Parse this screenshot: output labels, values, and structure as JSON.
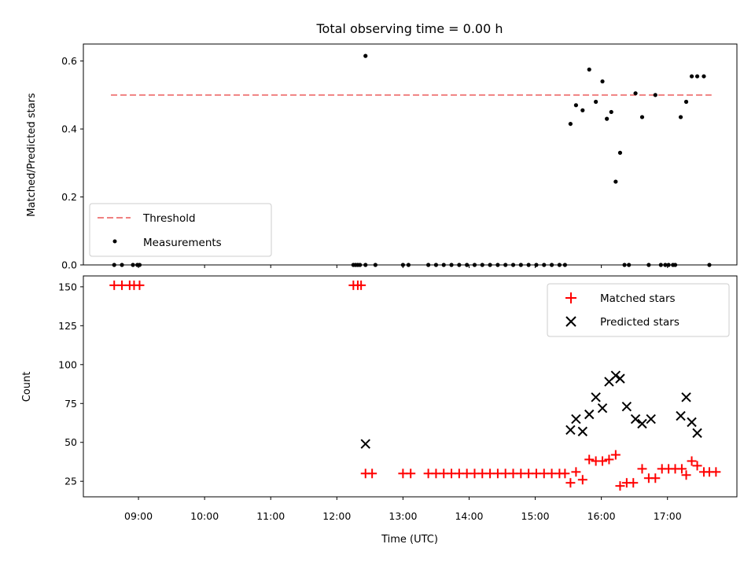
{
  "chart_data": [
    {
      "type": "scatter",
      "title": "Total observing time = 0.00 h",
      "xlabel": "",
      "ylabel": "Matched/Predicted stars",
      "ylim": [
        0,
        0.65
      ],
      "yticks": [
        "0.0",
        "0.2",
        "0.4",
        "0.6"
      ],
      "xlim": [
        "08:10",
        "18:03"
      ],
      "legend": {
        "position": "lower-left"
      },
      "threshold": {
        "name": "Threshold",
        "value": 0.5,
        "x_start": "08:35",
        "x_end": "17:40",
        "color": "#f08080"
      },
      "series": [
        {
          "name": "Measurements",
          "color": "#000000",
          "x": [
            "08:38",
            "08:45",
            "08:55",
            "08:59",
            "09:01",
            "12:15",
            "12:17",
            "12:19",
            "12:21",
            "12:26",
            "12:35",
            "13:00",
            "13:05",
            "13:23",
            "13:30",
            "13:37",
            "13:44",
            "13:51",
            "13:58",
            "14:05",
            "14:12",
            "14:19",
            "14:26",
            "14:33",
            "14:40",
            "14:47",
            "14:54",
            "15:01",
            "15:08",
            "15:15",
            "15:22",
            "15:27",
            "12:26",
            "15:32",
            "15:37",
            "15:43",
            "15:49",
            "15:55",
            "16:01",
            "16:05",
            "16:09",
            "16:13",
            "16:17",
            "16:21",
            "16:25",
            "16:31",
            "16:37",
            "16:43",
            "16:49",
            "16:54",
            "16:58",
            "17:01",
            "17:05",
            "17:07",
            "17:12",
            "17:17",
            "17:22",
            "17:27",
            "17:33",
            "17:38"
          ],
          "y": [
            0,
            0,
            0,
            0,
            0,
            0,
            0,
            0,
            0,
            0.615,
            0,
            0,
            0,
            0,
            0,
            0,
            0,
            0,
            0,
            0,
            0,
            0,
            0,
            0,
            0,
            0,
            0,
            0,
            0,
            0,
            0,
            0,
            0,
            0.415,
            0.47,
            0.455,
            0.575,
            0.48,
            0.54,
            0.43,
            0.45,
            0.245,
            0.33,
            0,
            0,
            0.505,
            0.435,
            0,
            0.5,
            0,
            0,
            0,
            0,
            0,
            0.435,
            0.48,
            0.555,
            0.555,
            0.555,
            0
          ]
        }
      ]
    },
    {
      "type": "scatter",
      "title": "",
      "xlabel": "Time (UTC)",
      "ylabel": "Count",
      "ylim": [
        15,
        157
      ],
      "yticks": [
        "25",
        "50",
        "75",
        "100",
        "125",
        "150"
      ],
      "xticks": [
        "09:00",
        "10:00",
        "11:00",
        "12:00",
        "13:00",
        "14:00",
        "15:00",
        "16:00",
        "17:00"
      ],
      "xlim": [
        "08:10",
        "18:03"
      ],
      "legend": {
        "position": "upper-right"
      },
      "series": [
        {
          "name": "Matched stars",
          "color": "#ff0000",
          "marker": "plus",
          "x": [
            "08:38",
            "08:45",
            "08:52",
            "08:56",
            "09:01",
            "12:15",
            "12:19",
            "12:22",
            "12:26",
            "12:32",
            "13:00",
            "13:07",
            "13:23",
            "13:30",
            "13:37",
            "13:44",
            "13:51",
            "13:58",
            "14:05",
            "14:12",
            "14:19",
            "14:26",
            "14:33",
            "14:40",
            "14:47",
            "14:54",
            "15:01",
            "15:08",
            "15:15",
            "15:22",
            "15:27",
            "15:32",
            "15:37",
            "15:43",
            "15:49",
            "15:55",
            "16:01",
            "16:07",
            "16:13",
            "16:17",
            "16:23",
            "16:29",
            "16:37",
            "16:43",
            "16:49",
            "16:55",
            "17:01",
            "17:07",
            "17:13",
            "17:17",
            "17:22",
            "17:27",
            "17:33",
            "17:38",
            "17:44"
          ],
          "y": [
            151,
            151,
            151,
            151,
            151,
            151,
            151,
            151,
            30,
            30,
            30,
            30,
            30,
            30,
            30,
            30,
            30,
            30,
            30,
            30,
            30,
            30,
            30,
            30,
            30,
            30,
            30,
            30,
            30,
            30,
            30,
            24,
            31,
            26,
            39,
            38,
            38,
            39,
            42,
            22,
            24,
            24,
            33,
            27,
            27,
            33,
            33,
            33,
            33,
            29,
            38,
            35,
            31,
            31,
            31
          ]
        },
        {
          "name": "Predicted stars",
          "color": "#000000",
          "marker": "x",
          "x": [
            "12:26",
            "15:32",
            "15:37",
            "15:43",
            "15:49",
            "15:55",
            "16:01",
            "16:07",
            "16:13",
            "16:17",
            "16:23",
            "16:31",
            "16:37",
            "16:45",
            "17:12",
            "17:17",
            "17:22",
            "17:27"
          ],
          "y": [
            49,
            58,
            65,
            57,
            68,
            79,
            72,
            89,
            93,
            91,
            73,
            65,
            62,
            65,
            67,
            79,
            63,
            56
          ]
        }
      ]
    }
  ]
}
